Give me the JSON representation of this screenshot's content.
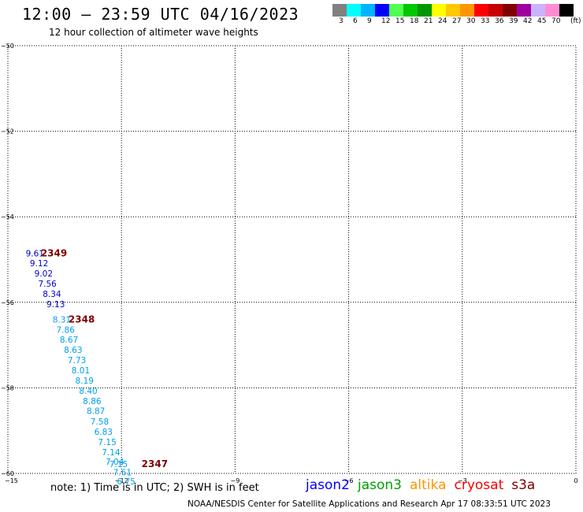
{
  "header": {
    "title": "12:00 — 23:59 UTC 04/16/2023",
    "subtitle": "12 hour collection of altimeter wave heights"
  },
  "legend": {
    "colors": [
      "#808080",
      "#00ffff",
      "#00b4ff",
      "#0000ff",
      "#50ff50",
      "#00c800",
      "#009600",
      "#ffff00",
      "#ffc800",
      "#ff9600",
      "#ff0000",
      "#c80000",
      "#800000",
      "#a000a0",
      "#c8b4ff",
      "#ff8cd2",
      "#000000"
    ],
    "labels": [
      "3",
      "6",
      "9",
      "12",
      "15",
      "18",
      "21",
      "24",
      "27",
      "30",
      "33",
      "36",
      "39",
      "42",
      "45",
      "70",
      "(ft)"
    ]
  },
  "chart_data": {
    "type": "scatter",
    "title": "12:00 — 23:59 UTC 04/16/2023",
    "subtitle": "12 hour collection of altimeter wave heights",
    "xlim": [
      -15,
      0
    ],
    "ylim": [
      -60,
      -50
    ],
    "x_ticks": [
      -15,
      -12,
      -9,
      -6,
      -3,
      0
    ],
    "x_tick_labels": [
      "−15",
      "−12",
      "−9",
      "−6",
      "−3",
      "0"
    ],
    "y_ticks": [
      -50,
      -52,
      -54,
      -56,
      -58,
      -60
    ],
    "y_tick_labels": [
      "−50",
      "−52",
      "−54",
      "−56",
      "−58",
      "−60"
    ],
    "grid": true,
    "series": [
      {
        "color": "#0000c8",
        "points": [
          {
            "x": -14.53,
            "y": -54.85,
            "label": "9.61"
          },
          {
            "x": -14.42,
            "y": -55.08,
            "label": "9.12"
          },
          {
            "x": -14.3,
            "y": -55.32,
            "label": "9.02"
          },
          {
            "x": -14.2,
            "y": -55.56,
            "label": "7.56"
          },
          {
            "x": -14.08,
            "y": -55.8,
            "label": "8.34"
          },
          {
            "x": -13.98,
            "y": -56.04,
            "label": "9.13"
          }
        ]
      },
      {
        "color": "#00a0e6",
        "points": [
          {
            "x": -13.82,
            "y": -56.4,
            "label": "8.31"
          },
          {
            "x": -13.72,
            "y": -56.64,
            "label": "7.86"
          },
          {
            "x": -13.63,
            "y": -56.87,
            "label": "8.67"
          },
          {
            "x": -13.52,
            "y": -57.11,
            "label": "8.63"
          },
          {
            "x": -13.42,
            "y": -57.35,
            "label": "7.73"
          },
          {
            "x": -13.32,
            "y": -57.59,
            "label": "8.01"
          },
          {
            "x": -13.22,
            "y": -57.83,
            "label": "8.19"
          },
          {
            "x": -13.12,
            "y": -58.07,
            "label": "8.40"
          },
          {
            "x": -13.02,
            "y": -58.31,
            "label": "8.86"
          },
          {
            "x": -12.92,
            "y": -58.54,
            "label": "8.87"
          },
          {
            "x": -12.82,
            "y": -58.78,
            "label": "7.58"
          },
          {
            "x": -12.72,
            "y": -59.02,
            "label": "6.83"
          },
          {
            "x": -12.62,
            "y": -59.26,
            "label": "7.15"
          },
          {
            "x": -12.52,
            "y": -59.5,
            "label": "7.14"
          },
          {
            "x": -12.42,
            "y": -59.72,
            "label": "7.04"
          },
          {
            "x": -12.32,
            "y": -59.78,
            "label": "7.15"
          },
          {
            "x": -12.22,
            "y": -59.97,
            "label": "7.61"
          },
          {
            "x": -12.12,
            "y": -60.18,
            "label": "6.75"
          }
        ]
      }
    ],
    "annotations": [
      {
        "text": "2349",
        "x": -14.13,
        "y": -54.85,
        "color": "#800000"
      },
      {
        "text": "2348",
        "x": -13.4,
        "y": -56.4,
        "color": "#800000"
      },
      {
        "text": "2347",
        "x": -11.47,
        "y": -59.78,
        "color": "#800000"
      }
    ]
  },
  "footer": {
    "note": "note:  1) Time is in UTC;  2) SWH is in feet",
    "satellites": [
      {
        "name": "jason2",
        "color": "#0000ff"
      },
      {
        "name": "jason3",
        "color": "#00a000"
      },
      {
        "name": "altika",
        "color": "#ff9600"
      },
      {
        "name": "cryosat",
        "color": "#ff0000"
      },
      {
        "name": "s3a",
        "color": "#800000"
      }
    ],
    "credit": "NOAA/NESDIS Center for Satellite Applications and Research     Apr 17 08:33:51 UTC 2023"
  }
}
